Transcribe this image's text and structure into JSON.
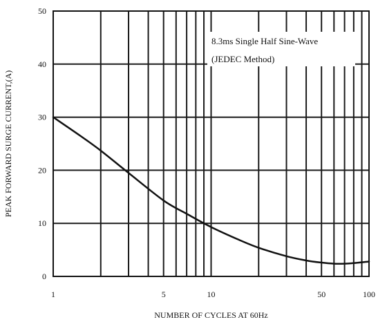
{
  "chart_data": {
    "type": "line",
    "title": "",
    "xlabel": "NUMBER OF CYCLES AT 60Hz",
    "ylabel": "PEAK FORWARD SURGE CURRENT,(A)",
    "xscale": "log",
    "xlim": [
      1,
      100
    ],
    "ylim": [
      0,
      50
    ],
    "x_ticks": [
      1,
      5,
      10,
      50,
      100
    ],
    "x_tick_labels": [
      "1",
      "5",
      "10",
      "50",
      "100"
    ],
    "y_ticks": [
      0,
      10,
      20,
      30,
      40,
      50
    ],
    "y_tick_labels": [
      "0",
      "10",
      "20",
      "30",
      "40",
      "50"
    ],
    "grid": true,
    "annotation": {
      "lines": [
        "8.3ms Single Half Sine-Wave",
        "(JEDEC Method)"
      ],
      "placement": "top-right"
    },
    "series": [
      {
        "x": [
          1,
          1.5,
          2,
          3,
          5,
          7,
          10,
          15,
          20,
          30,
          40,
          50,
          60,
          70,
          80,
          100
        ],
        "y": [
          30,
          26.4,
          23.7,
          19.5,
          14.3,
          11.8,
          9.3,
          6.9,
          5.4,
          3.8,
          3.0,
          2.6,
          2.4,
          2.4,
          2.5,
          2.8
        ]
      }
    ],
    "colors": {
      "line": "#111111",
      "grid": "#1a1a1a"
    }
  }
}
